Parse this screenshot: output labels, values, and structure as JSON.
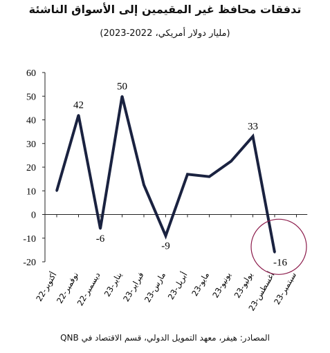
{
  "title": "تدفقات محافظ غير المقيمين إلى الأسواق الناشئة",
  "subtitle": "(مليار دولار أمريكي، 2022-2023)",
  "source": "المصادر: هيفر، معهد التمويل الدولي، قسم الاقتصاد في QNB",
  "chart_data": {
    "type": "line",
    "title": "تدفقات محافظ غير المقيمين إلى الأسواق الناشئة",
    "subtitle": "(مليار دولار أمريكي، 2022-2023)",
    "categories": [
      "أكتوبر-22",
      "نوفمبر-22",
      "ديسمبر-22",
      "يناير-23",
      "فبراير-23",
      "مارس-23",
      "أبريل-23",
      "مايو-23",
      "يونيو-23",
      "يوليو-23",
      "أغسطس-23",
      "سبتمبر-23"
    ],
    "series": [
      {
        "values": [
          10,
          42,
          -6,
          50,
          12.5,
          -9,
          17,
          16,
          22.5,
          33,
          -16,
          null
        ]
      }
    ],
    "data_labels": [
      {
        "index": 1,
        "text": "42"
      },
      {
        "index": 2,
        "text": "-6"
      },
      {
        "index": 3,
        "text": "50"
      },
      {
        "index": 5,
        "text": "-9"
      },
      {
        "index": 9,
        "text": "33"
      },
      {
        "index": 10,
        "text": "-16"
      }
    ],
    "yticks": [
      "-20",
      "-10",
      "0",
      "10",
      "20",
      "30",
      "40",
      "50",
      "60"
    ],
    "ylim": [
      -20,
      60
    ],
    "grid": false,
    "line_color": "#1a2240",
    "highlight_circle_color": "#8b1a4a",
    "highlight_index": 10
  }
}
